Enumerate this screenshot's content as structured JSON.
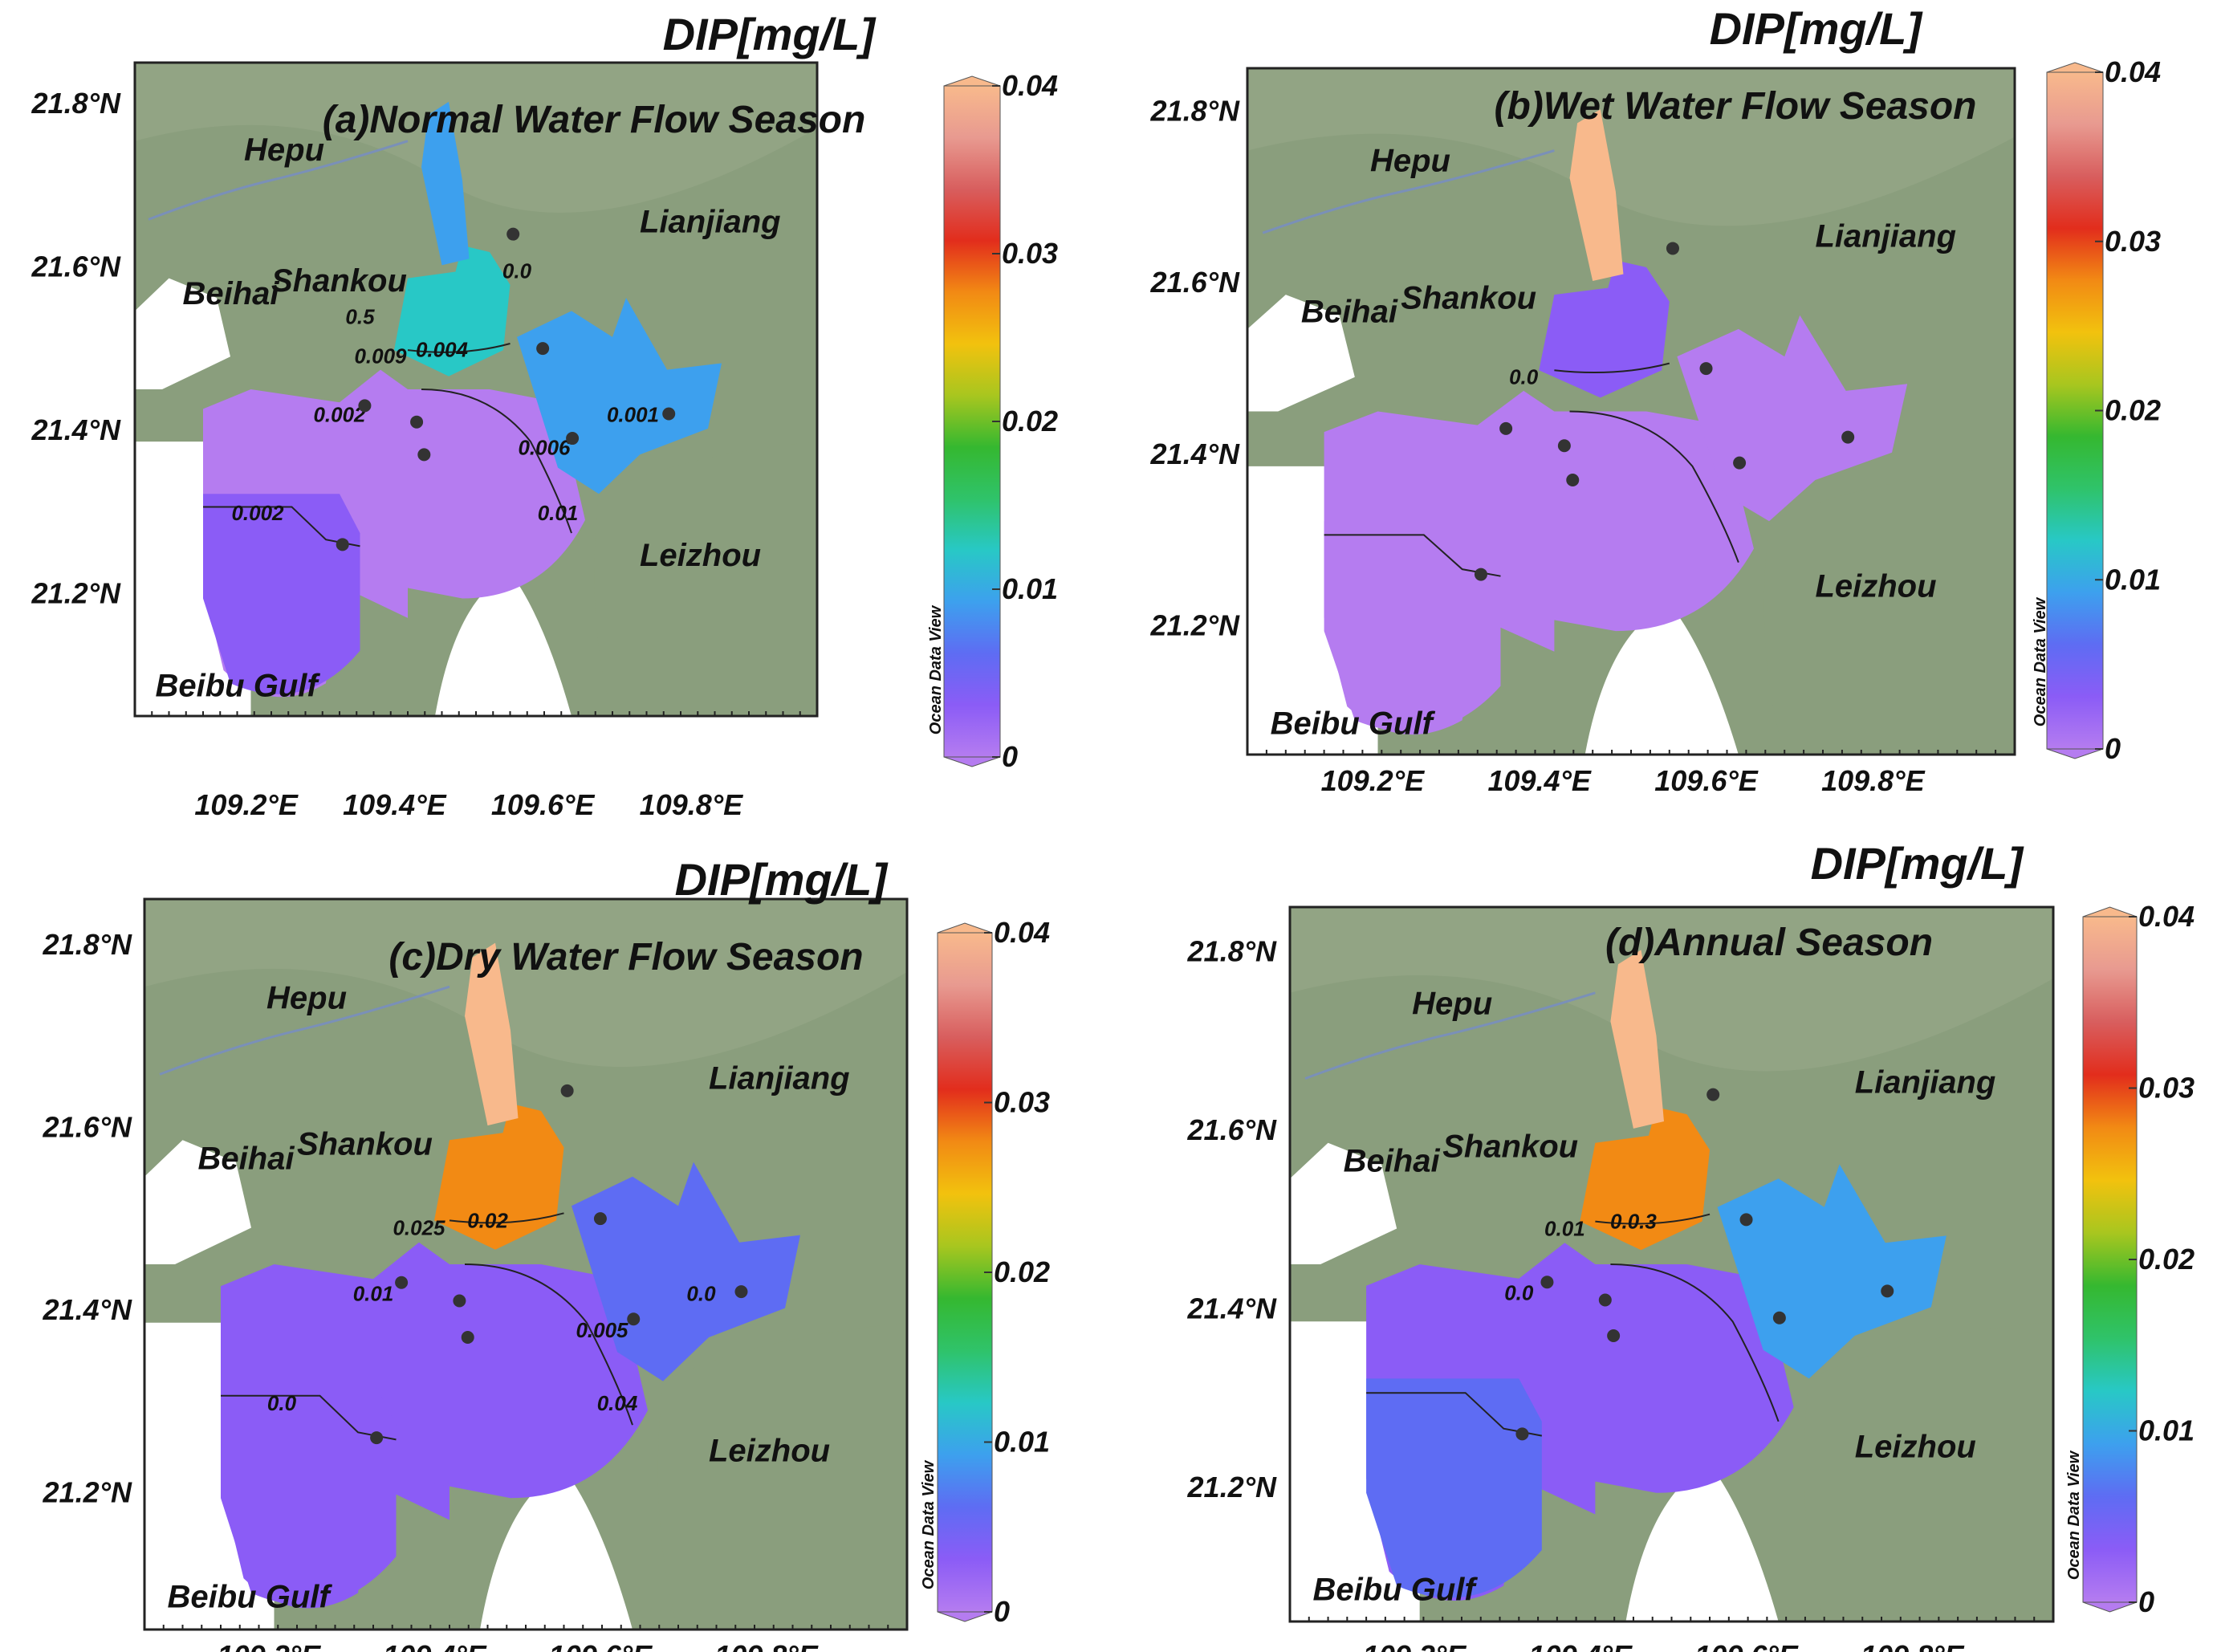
{
  "colormap": [
    "#b57cf0",
    "#8b5cf6",
    "#5e6cf3",
    "#3da0ee",
    "#28c8c6",
    "#2fc36a",
    "#35b830",
    "#a8c61f",
    "#f2c20e",
    "#f28a14",
    "#e22d1c",
    "#d85e5e",
    "#e89a90",
    "#f8b98c"
  ],
  "land_color": "#8a9e7d",
  "axes": {
    "lat_labels": [
      "21.8°N",
      "21.6°N",
      "21.4°N",
      "21.2°N"
    ],
    "lon_labels": [
      "109.2°E",
      "109.4°E",
      "109.6°E",
      "109.8°E"
    ],
    "lat_range": [
      21.05,
      21.85
    ],
    "lon_range": [
      109.05,
      109.97
    ]
  },
  "places": {
    "hepu": "Hepu",
    "beihai": "Beihai",
    "shankou": "Shankou",
    "lianjiang": "Lianjiang",
    "leizhou": "Leizhou",
    "beibu": "Beibu Gulf"
  },
  "stations": [
    {
      "lon": 109.56,
      "lat": 21.64
    },
    {
      "lon": 109.6,
      "lat": 21.5
    },
    {
      "lon": 109.36,
      "lat": 21.43
    },
    {
      "lon": 109.43,
      "lat": 21.41
    },
    {
      "lon": 109.44,
      "lat": 21.37
    },
    {
      "lon": 109.64,
      "lat": 21.39
    },
    {
      "lon": 109.77,
      "lat": 21.42
    },
    {
      "lon": 109.33,
      "lat": 21.26
    }
  ],
  "odv_label": "Ocean Data View",
  "panels": {
    "a": {
      "title": "DIP[mg/L]",
      "subtitle": "(a)Normal Water Flow Season",
      "colorbar_ticks": [
        "0.04",
        "0.03",
        "0.02",
        "0.01",
        "0"
      ],
      "contours": [
        "0.009",
        "0.004",
        "0.002",
        "0.006",
        "0.002",
        "0.001",
        "0.01",
        "0.0",
        "0.5"
      ],
      "values": {
        "river": 0.009,
        "estuary": 0.013,
        "gulf_w": 0.0015,
        "gulf_e": 0.0012,
        "south": 0.003,
        "lianjiang": 0.008
      }
    },
    "b": {
      "title": "DIP[mg/L]",
      "subtitle": "(b)Wet Water Flow Season",
      "colorbar_ticks": [
        "0.04",
        "0.03",
        "0.02",
        "0.01",
        "0"
      ],
      "contours": [
        "0.0"
      ],
      "values": {
        "river": 0.04,
        "estuary": 0.004,
        "gulf_w": 0.0012,
        "gulf_e": 0.0012,
        "south": 0.0012,
        "lianjiang": 0.0012
      }
    },
    "c": {
      "title": "DIP[mg/L]",
      "subtitle": "(c)Dry Water Flow Season",
      "colorbar_ticks": [
        "0.04",
        "0.03",
        "0.02",
        "0.01",
        "0"
      ],
      "contours": [
        "0.025",
        "0.02",
        "0.01",
        "0.005",
        "0.0",
        "0.0",
        "0.04"
      ],
      "values": {
        "river": 0.04,
        "estuary": 0.027,
        "gulf_w": 0.002,
        "gulf_e": 0.002,
        "south": 0.0045,
        "lianjiang": 0.006
      }
    },
    "d": {
      "title": "DIP[mg/L]",
      "subtitle": "(d)Annual Season",
      "colorbar_ticks": [
        "0.04",
        "0.03",
        "0.02",
        "0.01",
        "0"
      ],
      "contours": [
        "0.01",
        "0.0.3",
        "0.0"
      ],
      "values": {
        "river": 0.04,
        "estuary": 0.027,
        "gulf_w": 0.003,
        "gulf_e": 0.003,
        "south": 0.007,
        "lianjiang": 0.01
      }
    }
  }
}
